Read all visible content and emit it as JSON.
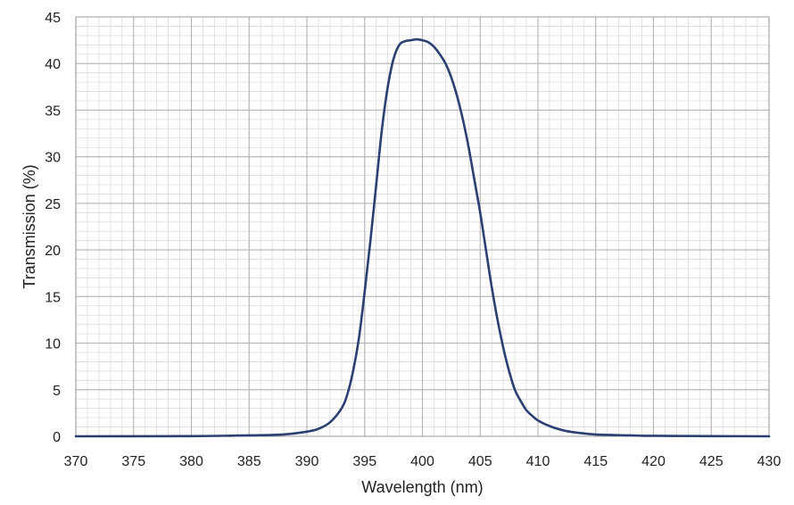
{
  "chart_data": {
    "type": "line",
    "title": "",
    "xlabel": "Wavelength (nm)",
    "ylabel": "Transmission (%)",
    "xlim": [
      370,
      430
    ],
    "ylim": [
      0,
      45
    ],
    "x_ticks": [
      370,
      375,
      380,
      385,
      390,
      395,
      400,
      405,
      410,
      415,
      420,
      425,
      430
    ],
    "y_ticks": [
      0,
      5,
      10,
      15,
      20,
      25,
      30,
      35,
      40,
      45
    ],
    "x_minor_step": 1,
    "y_minor_step": 1,
    "grid": true,
    "legend": "none",
    "colors": {
      "line": "#2b3f73",
      "major_grid": "#b4b4b4",
      "minor_grid": "#dcdcdc",
      "frame": "#9a9a9a",
      "text": "#222222"
    },
    "series": [
      {
        "x": [
          370,
          380,
          385,
          388,
          390,
          391,
          392,
          393,
          393.5,
          394,
          394.5,
          395,
          395.5,
          396,
          396.5,
          397,
          397.5,
          398,
          398.5,
          399,
          399.5,
          400,
          400.5,
          401,
          401.5,
          402,
          402.5,
          403,
          403.5,
          404,
          404.5,
          405,
          405.5,
          406,
          406.5,
          407,
          407.5,
          408,
          408.5,
          409,
          409.5,
          410,
          411,
          412,
          413,
          415,
          418,
          420,
          425,
          430
        ],
        "y": [
          0,
          0.02,
          0.1,
          0.2,
          0.5,
          0.8,
          1.5,
          3,
          4.5,
          7,
          10.5,
          15.5,
          21,
          27,
          33,
          37.5,
          40.5,
          42,
          42.4,
          42.5,
          42.6,
          42.5,
          42.3,
          41.8,
          41,
          40,
          38.5,
          36.5,
          34,
          31,
          27.5,
          24,
          20,
          16,
          12.5,
          9.5,
          7,
          5,
          3.8,
          2.8,
          2.2,
          1.7,
          1.1,
          0.7,
          0.45,
          0.2,
          0.1,
          0.05,
          0.02,
          0
        ]
      }
    ]
  }
}
